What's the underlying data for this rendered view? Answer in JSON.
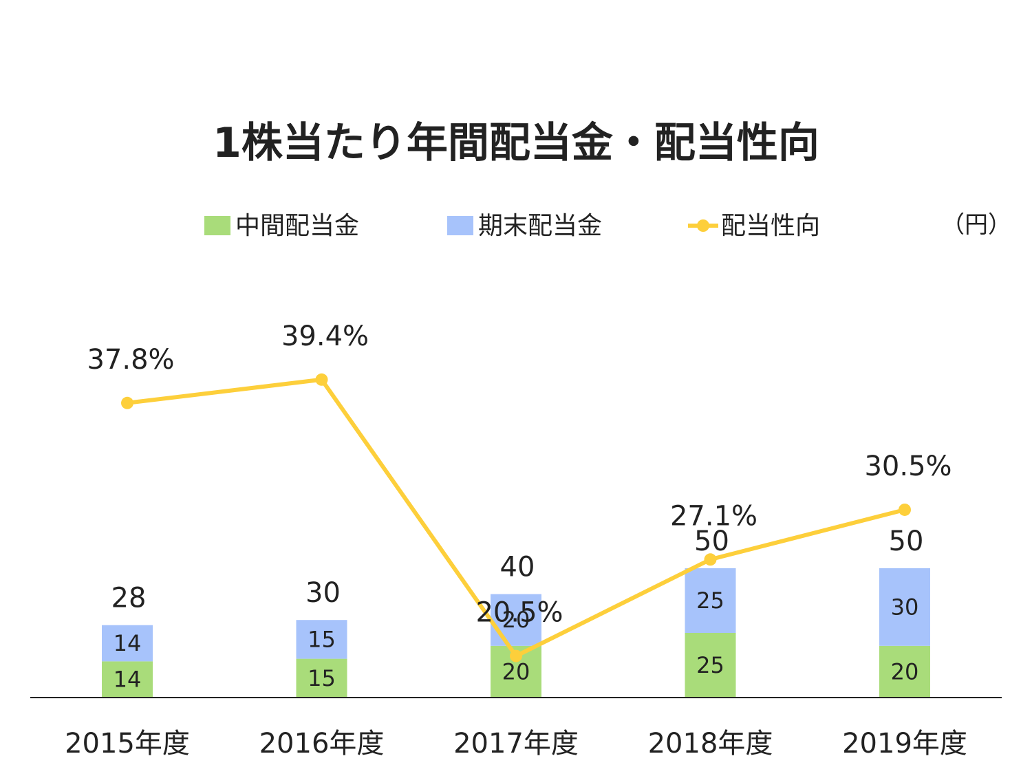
{
  "colors": {
    "interim": "#a9dc7a",
    "year_end": "#a7c3fb",
    "payout": "#fdcf3b",
    "axis": "#222222"
  },
  "chart_data": {
    "type": "bar",
    "title": "1株当たり年間配当金・配当性向",
    "unit": "（円）",
    "stacked": true,
    "categories": [
      "2015年度",
      "2016年度",
      "2017年度",
      "2018年度",
      "2019年度"
    ],
    "series": [
      {
        "name": "中間配当金",
        "type": "bar",
        "values": [
          14,
          15,
          20,
          25,
          20
        ]
      },
      {
        "name": "期末配当金",
        "type": "bar",
        "values": [
          14,
          15,
          20,
          25,
          30
        ]
      },
      {
        "name": "配当性向",
        "type": "line",
        "values": [
          37.8,
          39.4,
          20.5,
          27.1,
          30.5
        ],
        "labels": [
          "37.8%",
          "39.4%",
          "20.5%",
          "27.1%",
          "30.5%"
        ]
      }
    ],
    "totals": [
      "28",
      "30",
      "40",
      "50",
      "50"
    ],
    "legend_position": "top"
  }
}
